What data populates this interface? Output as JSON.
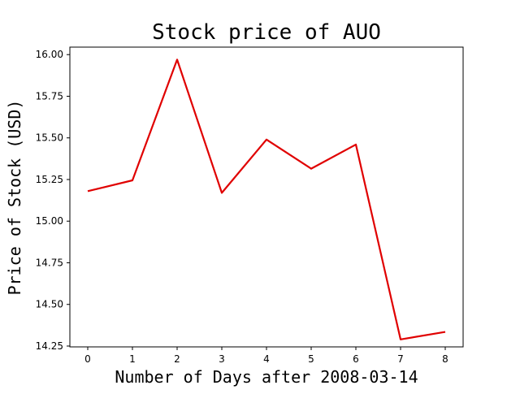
{
  "chart_data": {
    "type": "line",
    "title": "Stock price of AUO",
    "xlabel": "Number of Days after 2008-03-14",
    "ylabel": "Price of Stock (USD)",
    "x": [
      0,
      1,
      2,
      3,
      4,
      5,
      6,
      7,
      8
    ],
    "series": [
      {
        "values": [
          15.18,
          15.245,
          15.97,
          15.17,
          15.49,
          15.315,
          15.46,
          14.29,
          14.335
        ]
      }
    ],
    "xlim": [
      -0.4,
      8.4
    ],
    "ylim": [
      14.245,
      16.045
    ],
    "xticks": [
      "0",
      "1",
      "2",
      "3",
      "4",
      "5",
      "6",
      "7",
      "8"
    ],
    "yticks": [
      "14.25",
      "14.50",
      "14.75",
      "15.00",
      "15.25",
      "15.50",
      "15.75",
      "16.00"
    ],
    "grid": false,
    "line_color": "#e00000"
  }
}
